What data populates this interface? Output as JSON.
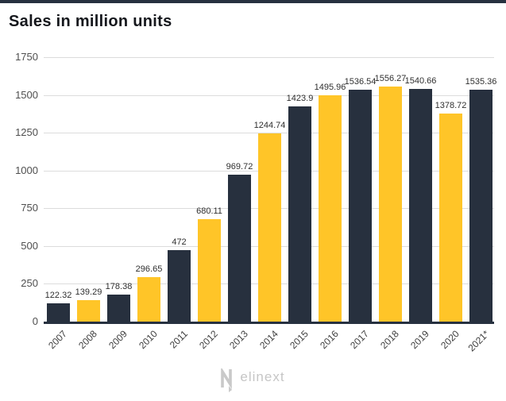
{
  "page": {
    "accent_bar_color": "#273140",
    "background_color": "#ffffff"
  },
  "chart_data": {
    "type": "bar",
    "title": "Sales in million units",
    "categories": [
      "2007",
      "2008",
      "2009",
      "2010",
      "2011",
      "2012",
      "2013",
      "2014",
      "2015",
      "2016",
      "2017",
      "2018",
      "2019",
      "2020",
      "2021*"
    ],
    "values": [
      122.32,
      139.29,
      178.38,
      296.65,
      472,
      680.11,
      969.72,
      1244.74,
      1423.9,
      1495.96,
      1536.54,
      1556.27,
      1540.66,
      1378.72,
      1535.36
    ],
    "value_labels": [
      "122.32",
      "139.29",
      "178.38",
      "296.65",
      "472",
      "680.11",
      "969.72",
      "1244.74",
      "1423.9",
      "1495.96",
      "1536.54",
      "1556.27",
      "1540.66",
      "1378.72",
      "1535.36"
    ],
    "xlabel": "",
    "ylabel": "",
    "ylim": [
      0,
      1750
    ],
    "yticks": [
      0,
      250,
      500,
      750,
      1000,
      1250,
      1500,
      1750
    ],
    "grid": "horizontal",
    "legend": "none",
    "bar_color_odd_years": "#27303E",
    "bar_color_even_years": "#FFC528",
    "gridline_color": "#dcdcdc",
    "axis_line_color": "#273140",
    "tick_label_color": "#4f4f4f",
    "value_label_color": "#2f2f2f"
  },
  "footer": {
    "logo_text": "elinext",
    "logo_color": "#c6c6c6"
  }
}
